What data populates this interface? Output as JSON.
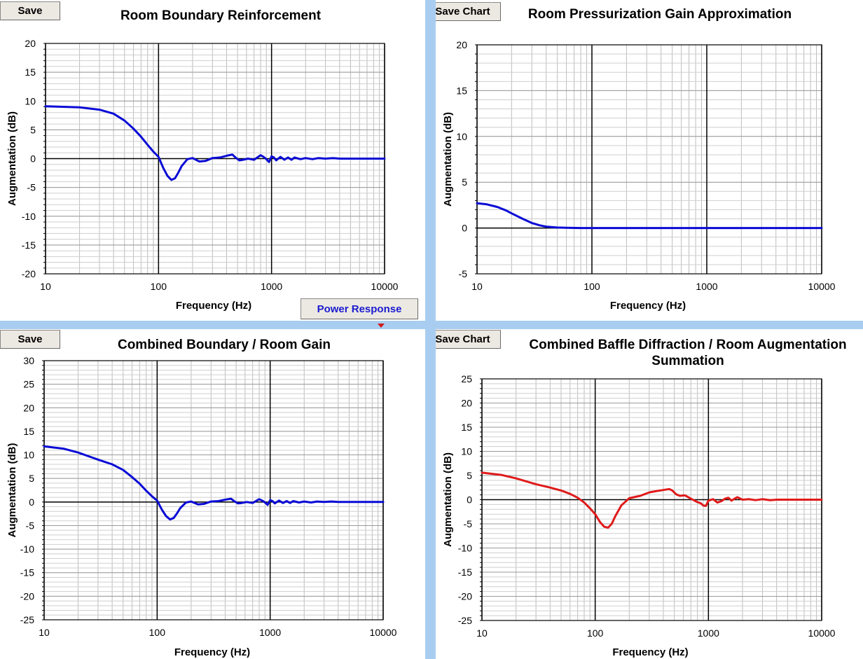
{
  "buttons": {
    "tl_save": "Save",
    "tr_save": "Save Chart",
    "bl_save": "Save",
    "br_save": "Save Chart",
    "power_response": "Power Response"
  },
  "colors": {
    "blue_curve": "#0a0ad6",
    "red_curve": "#e01a1a",
    "window_bg": "#a8cdf0"
  },
  "chart_data": [
    {
      "type": "line",
      "title": "Room Boundary Reinforcement",
      "xlabel": "Frequency (Hz)",
      "ylabel": "Augmentation (dB)",
      "x_scale": "log",
      "xlim": [
        10,
        10000
      ],
      "ylim": [
        -20,
        20
      ],
      "x_ticks": [
        "10",
        "100",
        "1000",
        "10000"
      ],
      "y_ticks": [
        "-20",
        "-15",
        "-10",
        "-5",
        "0",
        "5",
        "10",
        "15",
        "20"
      ],
      "grid": true,
      "series": [
        {
          "color": "#0a0ad6",
          "x": [
            10,
            20,
            30,
            40,
            50,
            60,
            70,
            80,
            90,
            100,
            110,
            120,
            130,
            140,
            150,
            160,
            180,
            200,
            230,
            260,
            300,
            350,
            400,
            450,
            480,
            520,
            560,
            620,
            700,
            800,
            850,
            900,
            950,
            1000,
            1050,
            1100,
            1200,
            1300,
            1400,
            1500,
            1600,
            1800,
            2000,
            2300,
            2600,
            3000,
            3500,
            4000,
            5000,
            7000,
            10000
          ],
          "y": [
            9.1,
            8.9,
            8.5,
            7.8,
            6.6,
            5.2,
            3.8,
            2.4,
            1.2,
            0.3,
            -1.6,
            -3.0,
            -3.7,
            -3.4,
            -2.4,
            -1.3,
            -0.1,
            0.1,
            -0.5,
            -0.4,
            0.1,
            0.2,
            0.5,
            0.7,
            0.2,
            -0.3,
            -0.2,
            0.0,
            -0.2,
            0.6,
            0.3,
            -0.1,
            -0.6,
            0.4,
            0.2,
            -0.3,
            0.3,
            -0.2,
            0.2,
            -0.2,
            0.2,
            -0.1,
            0.1,
            -0.1,
            0.1,
            0.0,
            0.1,
            0.0,
            0.0,
            0.0,
            0.0
          ]
        }
      ]
    },
    {
      "type": "line",
      "title": "Room Pressurization Gain Approximation",
      "xlabel": "Frequency (Hz)",
      "ylabel": "Augmentation (dB)",
      "x_scale": "log",
      "xlim": [
        10,
        10000
      ],
      "ylim": [
        -5,
        20
      ],
      "x_ticks": [
        "10",
        "100",
        "1000",
        "10000"
      ],
      "y_ticks": [
        "-5",
        "0",
        "5",
        "10",
        "15",
        "20"
      ],
      "grid": true,
      "series": [
        {
          "color": "#0a0ad6",
          "x": [
            10,
            12,
            15,
            18,
            20,
            25,
            30,
            35,
            40,
            50,
            60,
            80,
            100,
            1000,
            10000
          ],
          "y": [
            2.7,
            2.6,
            2.3,
            1.9,
            1.6,
            1.0,
            0.55,
            0.3,
            0.15,
            0.05,
            0.02,
            0.0,
            0.0,
            0.0,
            0.0
          ]
        }
      ]
    },
    {
      "type": "line",
      "title": "Combined Boundary / Room Gain",
      "xlabel": "Frequency (Hz)",
      "ylabel": "Augmentation (dB)",
      "x_scale": "log",
      "xlim": [
        10,
        10000
      ],
      "ylim": [
        -25,
        30
      ],
      "x_ticks": [
        "10",
        "100",
        "1000",
        "10000"
      ],
      "y_ticks": [
        "-25",
        "-20",
        "-15",
        "-10",
        "-5",
        "0",
        "5",
        "10",
        "15",
        "20",
        "25",
        "30"
      ],
      "grid": true,
      "series": [
        {
          "color": "#0a0ad6",
          "x": [
            10,
            15,
            20,
            30,
            40,
            50,
            60,
            70,
            80,
            90,
            100,
            110,
            120,
            130,
            140,
            150,
            160,
            180,
            200,
            230,
            260,
            300,
            350,
            400,
            450,
            480,
            520,
            560,
            620,
            700,
            800,
            850,
            900,
            950,
            1000,
            1050,
            1100,
            1200,
            1300,
            1400,
            1500,
            1600,
            1800,
            2000,
            2300,
            2600,
            3000,
            3500,
            4000,
            5000,
            7000,
            10000
          ],
          "y": [
            11.8,
            11.3,
            10.5,
            9.0,
            8.0,
            6.8,
            5.3,
            3.9,
            2.4,
            1.2,
            0.3,
            -1.6,
            -3.0,
            -3.7,
            -3.4,
            -2.4,
            -1.3,
            -0.1,
            0.1,
            -0.5,
            -0.4,
            0.1,
            0.2,
            0.5,
            0.7,
            0.2,
            -0.3,
            -0.2,
            0.0,
            -0.2,
            0.6,
            0.3,
            -0.1,
            -0.6,
            0.4,
            0.2,
            -0.3,
            0.3,
            -0.2,
            0.2,
            -0.2,
            0.2,
            -0.1,
            0.1,
            -0.1,
            0.1,
            0.0,
            0.1,
            0.0,
            0.0,
            0.0,
            0.0
          ]
        }
      ]
    },
    {
      "type": "line",
      "title": "Combined Baffle Diffraction / Room Augmentation Summation",
      "xlabel": "Frequency (Hz)",
      "ylabel": "Augmentation (dB)",
      "x_scale": "log",
      "xlim": [
        10,
        10000
      ],
      "ylim": [
        -25,
        25
      ],
      "x_ticks": [
        "10",
        "100",
        "1000",
        "10000"
      ],
      "y_ticks": [
        "-25",
        "-20",
        "-15",
        "-10",
        "-5",
        "0",
        "5",
        "10",
        "15",
        "20",
        "25"
      ],
      "grid": true,
      "series": [
        {
          "color": "#e01a1a",
          "x": [
            10,
            15,
            20,
            30,
            40,
            50,
            60,
            70,
            80,
            90,
            100,
            110,
            120,
            130,
            140,
            150,
            170,
            200,
            250,
            300,
            350,
            400,
            450,
            480,
            520,
            560,
            620,
            700,
            800,
            850,
            900,
            950,
            1000,
            1100,
            1200,
            1300,
            1400,
            1500,
            1600,
            1700,
            1800,
            2000,
            2300,
            2600,
            3000,
            3500,
            4000,
            5000,
            7000,
            10000
          ],
          "y": [
            5.6,
            5.1,
            4.4,
            3.2,
            2.5,
            1.9,
            1.2,
            0.4,
            -0.6,
            -1.8,
            -3.0,
            -4.6,
            -5.6,
            -5.8,
            -5.0,
            -3.5,
            -1.2,
            0.3,
            0.8,
            1.5,
            1.8,
            2.0,
            2.2,
            1.9,
            1.1,
            0.8,
            0.9,
            0.2,
            -0.5,
            -0.7,
            -1.2,
            -1.3,
            -0.2,
            0.1,
            -0.6,
            -0.3,
            0.2,
            0.4,
            -0.2,
            0.2,
            0.5,
            0.0,
            0.1,
            -0.1,
            0.1,
            -0.1,
            0.0,
            0.0,
            0.0,
            0.0
          ]
        }
      ]
    }
  ]
}
